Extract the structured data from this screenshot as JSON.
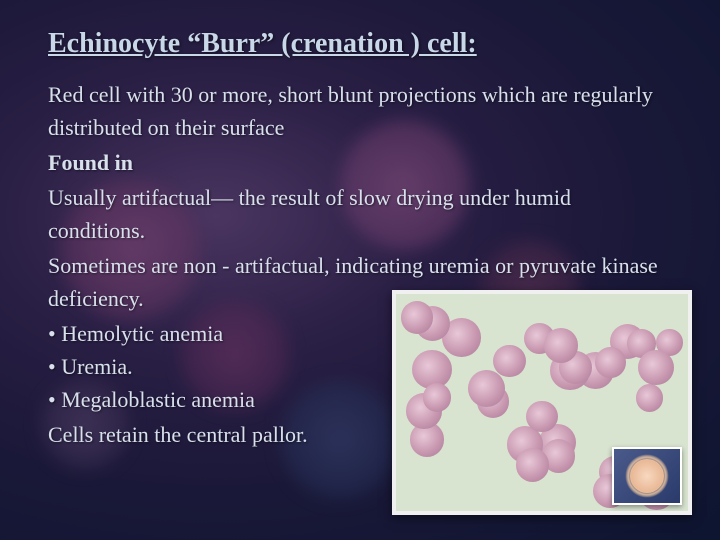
{
  "title": "Echinocyte “Burr” (crenation ) cell:",
  "description": "Red cell with 30 or more, short blunt projections which are regularly distributed on their surface",
  "found_in_label": "Found in",
  "note1": "Usually artifactual— the result of slow drying under humid conditions.",
  "note2": "Sometimes are non - artifactual, indicating uremia or pyruvate kinase deficiency.",
  "bullets": [
    "Hemolytic anemia",
    "Uremia.",
    "Megaloblastic anemia"
  ],
  "closing": "Cells retain the central pallor.",
  "colors": {
    "title": "#c8d8e8",
    "body": "#d8e0ec",
    "bg_deep": "#0d1530",
    "cell": "#c898b0",
    "panel_bg": "#d8e4d0"
  },
  "image": {
    "alt": "Microscopy field of echinocytes (burr cells) with inset close-up",
    "cell_count": 30
  }
}
